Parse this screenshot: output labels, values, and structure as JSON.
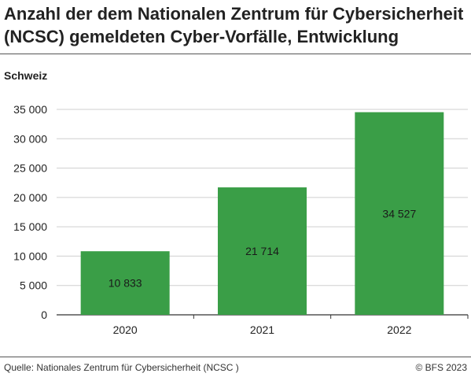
{
  "header": {
    "title": "Anzahl der dem Nationalen Zentrum für Cybersicherheit (NCSC) gemeldeten Cyber-Vorfälle, Entwicklung",
    "subtitle": "Schweiz"
  },
  "footer": {
    "source": "Quelle: Nationales Zentrum für Cybersicherheit (NCSC )",
    "copyright": "© BFS 2023"
  },
  "colors": {
    "bar": "#3a9e47",
    "grid": "#cfcfcf",
    "axis": "#333333"
  },
  "chart_data": {
    "type": "bar",
    "categories": [
      "2020",
      "2021",
      "2022"
    ],
    "values": [
      10833,
      21714,
      34527
    ],
    "value_labels": [
      "10 833",
      "21 714",
      "34 527"
    ],
    "ylim": [
      0,
      35000
    ],
    "yticks": [
      0,
      5000,
      10000,
      15000,
      20000,
      25000,
      30000,
      35000
    ],
    "ytick_labels": [
      "0",
      "5 000",
      "10 000",
      "15 000",
      "20 000",
      "25 000",
      "30 000",
      "35 000"
    ],
    "grid": true,
    "title": "",
    "xlabel": "",
    "ylabel": ""
  }
}
